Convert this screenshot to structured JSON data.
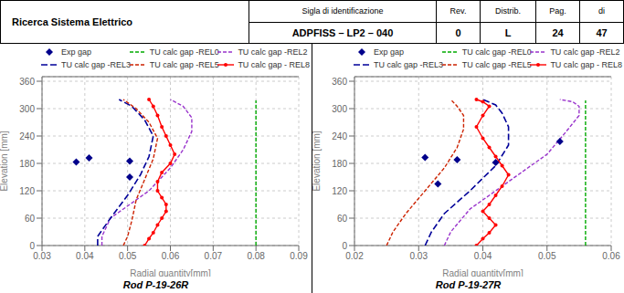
{
  "annotations": [
    "Ricerca Sistema Elettrico",
    "Sigla di identificazione",
    "ADPFISS – LP2 – 040",
    "Rev.",
    "0",
    "Distrib.",
    "L",
    "Pag.",
    "24",
    "di",
    "47"
  ],
  "chart_data": [
    {
      "type": "line",
      "title": "Rod P-19-26R",
      "x_label": "Radial quantity[mm]",
      "y_label": "Elevation [mm]",
      "xlim": [
        0.03,
        0.09
      ],
      "xticks": [
        0.03,
        0.04,
        0.05,
        0.06,
        0.07,
        0.08,
        0.09
      ],
      "ylim": [
        0,
        370
      ],
      "yticks": [
        0,
        60,
        120,
        180,
        240,
        300,
        360
      ],
      "grid": true,
      "series": [
        {
          "name": "Exp gap",
          "type": "scatter",
          "marker": "diamond",
          "color": "#00008B",
          "x": [
            0.038,
            0.041,
            0.0505,
            0.0505
          ],
          "values": [
            183,
            192,
            185,
            150
          ]
        },
        {
          "name": "TU calc gap -REL0",
          "type": "line",
          "line_style": "dashed",
          "color": "#00AA00",
          "x": [
            0.08,
            0.08,
            0.08,
            0.08,
            0.08,
            0.08,
            0.08
          ],
          "values": [
            0,
            45,
            100,
            160,
            220,
            270,
            318
          ]
        },
        {
          "name": "TU calc gap -REL2",
          "type": "line",
          "line_style": "dashed",
          "color": "#9933CC",
          "x": [
            0.044,
            0.044,
            0.046,
            0.055,
            0.06,
            0.063,
            0.065,
            0.065,
            0.063,
            0.06
          ],
          "values": [
            0,
            20,
            60,
            120,
            170,
            210,
            250,
            280,
            305,
            320
          ]
        },
        {
          "name": "TU calc gap -REL3",
          "type": "line",
          "line_style": "longdashed",
          "color": "#000099",
          "x": [
            0.043,
            0.043,
            0.046,
            0.05,
            0.053,
            0.055,
            0.056,
            0.054,
            0.051,
            0.048
          ],
          "values": [
            0,
            20,
            60,
            110,
            155,
            195,
            240,
            275,
            305,
            320
          ]
        },
        {
          "name": "TU calc gap -REL5",
          "type": "line",
          "line_style": "dashed",
          "color": "#CC2200",
          "x": [
            0.049,
            0.05,
            0.051,
            0.052,
            0.054,
            0.056,
            0.057,
            0.055,
            0.052,
            0.049
          ],
          "values": [
            0,
            20,
            55,
            100,
            145,
            190,
            235,
            270,
            300,
            320
          ]
        },
        {
          "name": "TU calc gap - REL8",
          "type": "line",
          "line_style": "solid",
          "marker": "circle",
          "color": "#FF0000",
          "x": [
            0.054,
            0.055,
            0.056,
            0.057,
            0.058,
            0.059,
            0.059,
            0.058,
            0.057,
            0.057,
            0.058,
            0.06,
            0.061,
            0.06,
            0.059,
            0.058,
            0.057,
            0.056,
            0.055
          ],
          "values": [
            0,
            15,
            28,
            45,
            60,
            75,
            90,
            105,
            120,
            140,
            160,
            180,
            200,
            220,
            240,
            260,
            285,
            305,
            320
          ]
        }
      ]
    },
    {
      "type": "line",
      "title": "Rod P-19-27R",
      "x_label": "Radial quantity[mm]",
      "y_label": "Elevation [mm]",
      "xlim": [
        0.02,
        0.06
      ],
      "xticks": [
        0.02,
        0.03,
        0.04,
        0.05,
        0.06
      ],
      "ylim": [
        0,
        370
      ],
      "yticks": [
        0,
        60,
        120,
        180,
        240,
        300,
        360
      ],
      "grid": true,
      "series": [
        {
          "name": "Exp gap",
          "type": "scatter",
          "marker": "diamond",
          "color": "#00008B",
          "x": [
            0.031,
            0.033,
            0.036,
            0.042,
            0.052
          ],
          "values": [
            193,
            135,
            188,
            182,
            228
          ]
        },
        {
          "name": "TU calc gap -REL0",
          "type": "line",
          "line_style": "dashed",
          "color": "#00AA00",
          "x": [
            0.056,
            0.056,
            0.056,
            0.056,
            0.056,
            0.056,
            0.056
          ],
          "values": [
            0,
            50,
            110,
            180,
            240,
            290,
            318
          ]
        },
        {
          "name": "TU calc gap -REL2",
          "type": "line",
          "line_style": "dashed",
          "color": "#9933CC",
          "x": [
            0.034,
            0.035,
            0.038,
            0.044,
            0.05,
            0.053,
            0.055,
            0.055,
            0.054,
            0.052
          ],
          "values": [
            0,
            30,
            80,
            140,
            200,
            250,
            285,
            305,
            315,
            320
          ]
        },
        {
          "name": "TU calc gap -REL3",
          "type": "line",
          "line_style": "longdashed",
          "color": "#000099",
          "x": [
            0.031,
            0.032,
            0.034,
            0.038,
            0.042,
            0.044,
            0.044,
            0.043,
            0.042,
            0.04
          ],
          "values": [
            0,
            30,
            70,
            120,
            175,
            220,
            260,
            290,
            308,
            320
          ]
        },
        {
          "name": "TU calc gap -REL5",
          "type": "line",
          "line_style": "dashed",
          "color": "#CC2200",
          "x": [
            0.025,
            0.026,
            0.028,
            0.031,
            0.034,
            0.036,
            0.037,
            0.037,
            0.036,
            0.035
          ],
          "values": [
            0,
            30,
            70,
            120,
            170,
            215,
            255,
            285,
            305,
            320
          ]
        },
        {
          "name": "TU calc gap - REL8",
          "type": "line",
          "line_style": "solid",
          "marker": "circle",
          "color": "#FF0000",
          "x": [
            0.039,
            0.04,
            0.041,
            0.042,
            0.041,
            0.04,
            0.041,
            0.042,
            0.043,
            0.044,
            0.043,
            0.042,
            0.041,
            0.04,
            0.039,
            0.04,
            0.041,
            0.04,
            0.039
          ],
          "values": [
            0,
            15,
            28,
            45,
            60,
            75,
            90,
            110,
            130,
            155,
            175,
            195,
            215,
            235,
            260,
            285,
            305,
            315,
            320
          ]
        }
      ]
    }
  ]
}
